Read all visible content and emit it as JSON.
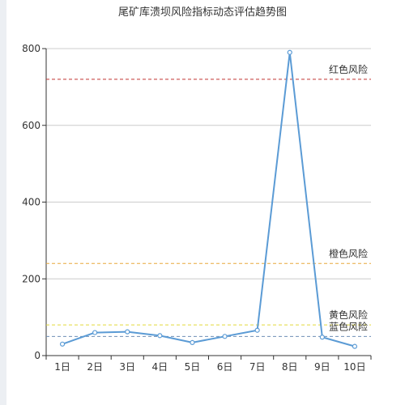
{
  "chart_data": {
    "type": "line",
    "title": "尾矿库溃坝风险指标动态评估趋势图",
    "categories": [
      "1日",
      "2日",
      "3日",
      "4日",
      "5日",
      "6日",
      "7日",
      "8日",
      "9日",
      "10日"
    ],
    "series": [
      {
        "values": [
          30,
          60,
          62,
          52,
          34,
          50,
          66,
          790,
          48,
          24
        ],
        "color": "#5b9bd5"
      }
    ],
    "ylim": [
      0,
      800
    ],
    "yticks": [
      0,
      200,
      400,
      600,
      800
    ],
    "grid": true,
    "reference_lines": [
      {
        "label": "红色风险",
        "value": 720,
        "color": "#c23531"
      },
      {
        "label": "橙色风险",
        "value": 240,
        "color": "#e8a83c"
      },
      {
        "label": "黄色风险",
        "value": 80,
        "color": "#e3d93b"
      },
      {
        "label": "蓝色风险",
        "value": 50,
        "color": "#6e8fb5"
      }
    ]
  }
}
